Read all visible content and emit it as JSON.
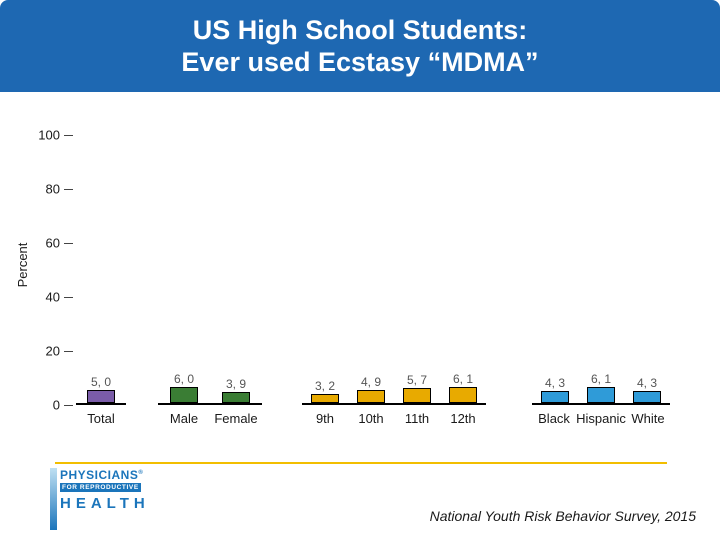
{
  "slide": {
    "title_line1": "US High School Students:",
    "title_line2": "Ever used Ecstasy “MDMA”",
    "source": "National Youth Risk Behavior Survey, 2015"
  },
  "logo": {
    "line1": "PHYSICIANS",
    "line2": "FOR REPRODUCTIVE",
    "line3": "HEALTH",
    "reg_mark": "®"
  },
  "colors": {
    "header_bg": "#1E68B2",
    "accent_line": "#F2BE00",
    "axis_text": "#1a1a1a",
    "value_label_text": "#555555"
  },
  "chart_data": {
    "type": "bar",
    "title": "US High School Students: Ever used Ecstasy “MDMA”",
    "ylabel": "Percent",
    "xlabel": "",
    "ylim": [
      0,
      100
    ],
    "yticks": [
      0,
      20,
      40,
      60,
      80,
      100
    ],
    "grid": false,
    "legend": false,
    "groups": [
      {
        "name": "total",
        "color": "#7A5CA8",
        "categories": [
          "Total"
        ],
        "values": [
          5.0
        ],
        "value_labels": [
          "5, 0"
        ]
      },
      {
        "name": "sex",
        "color": "#3A7D34",
        "categories": [
          "Male",
          "Female"
        ],
        "values": [
          6.0,
          3.9
        ],
        "value_labels": [
          "6, 0",
          "3, 9"
        ]
      },
      {
        "name": "grade",
        "color": "#E8AA00",
        "categories": [
          "9th",
          "10th",
          "11th",
          "12th"
        ],
        "values": [
          3.2,
          4.9,
          5.7,
          6.1
        ],
        "value_labels": [
          "3, 2",
          "4, 9",
          "5, 7",
          "6, 1"
        ]
      },
      {
        "name": "race",
        "color": "#2F9BD8",
        "categories": [
          "Black",
          "Hispanic",
          "White"
        ],
        "values": [
          4.3,
          6.1,
          4.3
        ],
        "value_labels": [
          "4, 3",
          "6, 1",
          "4, 3"
        ]
      }
    ]
  }
}
